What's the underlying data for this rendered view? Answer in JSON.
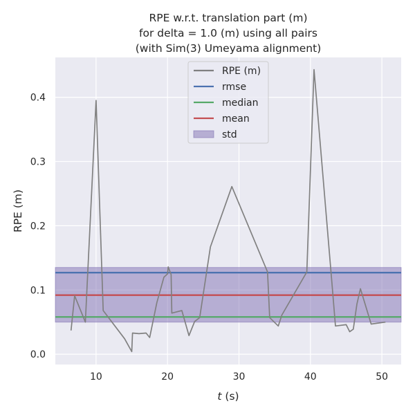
{
  "chart_data": {
    "type": "line",
    "title_lines": [
      "RPE w.r.t. translation part (m)",
      "for delta = 1.0 (m) using all pairs",
      "(with Sim(3) Umeyama alignment)"
    ],
    "xlabel_var": "t",
    "xlabel_unit": " (s)",
    "ylabel": "RPE (m)",
    "xlim": [
      4.3,
      52.7
    ],
    "ylim": [
      -0.016,
      0.462
    ],
    "xticks": [
      10,
      20,
      30,
      40,
      50
    ],
    "yticks": [
      0.0,
      0.1,
      0.2,
      0.3,
      0.4
    ],
    "xtick_labels": [
      "10",
      "20",
      "30",
      "40",
      "50"
    ],
    "ytick_labels": [
      "0.0",
      "0.1",
      "0.2",
      "0.3",
      "0.4"
    ],
    "grid": true,
    "legend_position": "top-center",
    "series": [
      {
        "name": "RPE (m)",
        "color": "#808080",
        "x": [
          6.5,
          7.0,
          8.5,
          10.0,
          11.0,
          14.0,
          15.0,
          15.1,
          16.0,
          17.0,
          17.5,
          18.5,
          19.5,
          20.0,
          20.1,
          20.5,
          20.6,
          22.0,
          23.0,
          23.8,
          24.5,
          26.0,
          29.0,
          34.0,
          34.3,
          35.5,
          36.0,
          39.5,
          40.5,
          43.0,
          43.5,
          45.0,
          45.5,
          46.0,
          46.5,
          47.0,
          48.5,
          50.5
        ],
        "y": [
          0.037,
          0.091,
          0.05,
          0.395,
          0.068,
          0.024,
          0.004,
          0.033,
          0.032,
          0.033,
          0.026,
          0.08,
          0.12,
          0.125,
          0.136,
          0.124,
          0.064,
          0.068,
          0.029,
          0.051,
          0.057,
          0.167,
          0.261,
          0.128,
          0.057,
          0.044,
          0.061,
          0.128,
          0.443,
          0.112,
          0.044,
          0.046,
          0.035,
          0.039,
          0.078,
          0.102,
          0.047,
          0.05
        ]
      }
    ],
    "stats": {
      "rmse": 0.127,
      "median": 0.058,
      "mean": 0.092,
      "std_low": 0.05,
      "std_high": 0.135
    },
    "legend": [
      {
        "label": "RPE (m)",
        "kind": "line",
        "color": "#808080"
      },
      {
        "label": "rmse",
        "kind": "line",
        "color": "#4c72b0"
      },
      {
        "label": "median",
        "kind": "line",
        "color": "#55a868"
      },
      {
        "label": "mean",
        "kind": "line",
        "color": "#c44e52"
      },
      {
        "label": "std",
        "kind": "patch",
        "color": "#8172b3"
      }
    ],
    "colors": {
      "axes_bg": "#eaeaf2",
      "grid": "#ffffff",
      "rmse": "#4c72b0",
      "median": "#55a868",
      "mean": "#c44e52",
      "std": "#8172b3",
      "rpe": "#808080"
    }
  }
}
